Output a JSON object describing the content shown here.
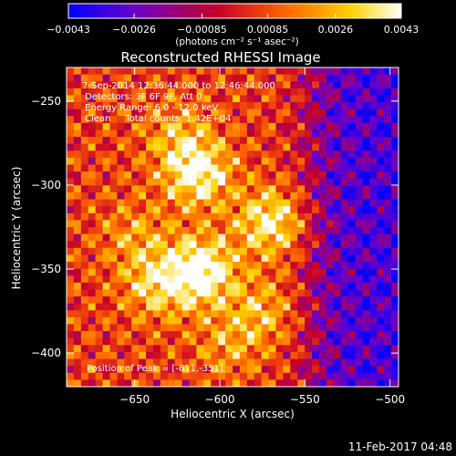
{
  "chart_data": {
    "type": "heatmap",
    "title": "Reconstructed RHESSI Image",
    "xlabel": "Heliocentric X (arcsec)",
    "ylabel": "Heliocentric Y (arcsec)",
    "xlim": [
      -690,
      -495
    ],
    "ylim": [
      -420,
      -230
    ],
    "x_ticks": [
      -650,
      -600,
      -550,
      -500
    ],
    "y_ticks": [
      -250,
      -300,
      -350,
      -400
    ],
    "x_tick_labels": [
      "−650",
      "−600",
      "−550",
      "−500"
    ],
    "y_tick_labels": [
      "−250",
      "−300",
      "−350",
      "−400"
    ],
    "colorbar": {
      "range": [
        -0.0043,
        0.0043
      ],
      "tick_values": [
        -0.0043,
        -0.0026,
        -0.00085,
        0.00085,
        0.0026,
        0.0043
      ],
      "tick_labels": [
        "−0.0043",
        "−0.0026",
        "−0.00085",
        "0.00085",
        "0.0026",
        "0.0043"
      ],
      "unit": "(photons cm⁻² s⁻¹ asec⁻²)",
      "colormap": [
        "#0000ff",
        "#6a00c8",
        "#c80028",
        "#ff6400",
        "#ffd200",
        "#ffffff"
      ]
    },
    "annotations": {
      "time_range": "7-Sep-2014 12:36:44.000 to 12:46:44.000",
      "detectors": "Detectors: 3F 6F 9F, Att 0",
      "energy_range": "Energy Range: 6.0 - 12.0 keV",
      "clean_counts": "Clean     Total counts: 1.42E+04",
      "peak_position": "Position of Peak = [-611,-351]"
    },
    "peak": {
      "x": -611,
      "y": -351
    },
    "sources": [
      {
        "x": -611,
        "y": -351,
        "amplitude": 1.0
      },
      {
        "x": -613,
        "y": -293,
        "amplitude": 0.85
      },
      {
        "x": -570,
        "y": -322,
        "amplitude": 0.8
      },
      {
        "x": -637,
        "y": -359,
        "amplitude": 0.6
      },
      {
        "x": -625,
        "y": -270,
        "amplitude": 0.4
      },
      {
        "x": -650,
        "y": -330,
        "amplitude": 0.35
      },
      {
        "x": -575,
        "y": -375,
        "amplitude": 0.45
      },
      {
        "x": -595,
        "y": -395,
        "amplitude": 0.35
      }
    ],
    "background": {
      "east_level": 0.45,
      "west_level": -0.3,
      "transition_x": -545
    }
  },
  "footer": {
    "timestamp": "11-Feb-2017 04:48"
  }
}
